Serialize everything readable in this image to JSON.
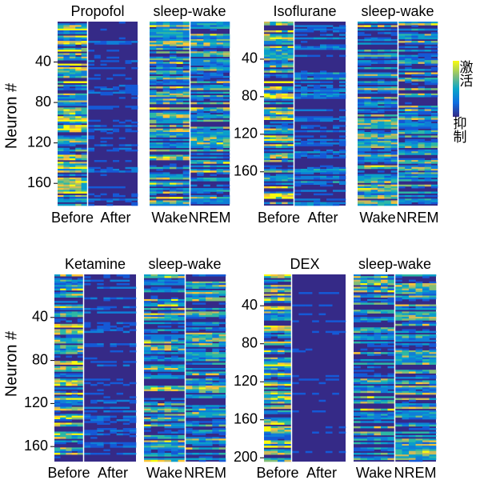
{
  "y_axis_label": "Neuron #",
  "colorbar": {
    "high": "激活",
    "low": "抑制"
  },
  "panels": [
    {
      "drug": "Propofol",
      "drug_columns": [
        "Before",
        "After"
      ],
      "sleep_title": "sleep-wake",
      "sleep_columns": [
        "Wake",
        "NREM"
      ],
      "ylim": [
        0,
        182
      ],
      "yticks": [
        40,
        80,
        120,
        160
      ]
    },
    {
      "drug": "Isoflurane",
      "drug_columns": [
        "Before",
        "After"
      ],
      "sleep_title": "sleep-wake",
      "sleep_columns": [
        "Wake",
        "NREM"
      ],
      "ylim": [
        0,
        196
      ],
      "yticks": [
        40,
        80,
        120,
        160
      ]
    },
    {
      "drug": "Ketamine",
      "drug_columns": [
        "Before",
        "After"
      ],
      "sleep_title": "sleep-wake",
      "sleep_columns": [
        "Wake",
        "NREM"
      ],
      "ylim": [
        0,
        174
      ],
      "yticks": [
        40,
        80,
        120,
        160
      ]
    },
    {
      "drug": "DEX",
      "drug_columns": [
        "Before",
        "After"
      ],
      "sleep_title": "sleep-wake",
      "sleep_columns": [
        "Wake",
        "NREM"
      ],
      "ylim": [
        7,
        204
      ],
      "yticks": [
        40,
        80,
        120,
        160,
        200
      ]
    }
  ]
}
